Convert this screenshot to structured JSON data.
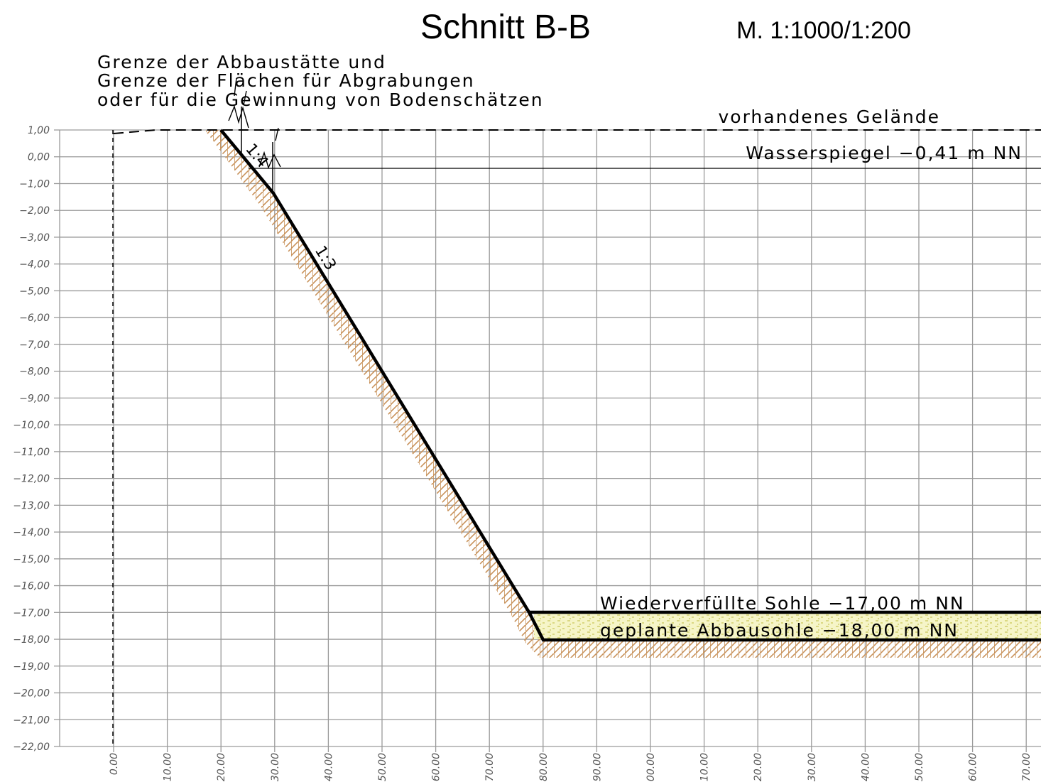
{
  "header": {
    "title": "Schnitt B-B",
    "scale": "M. 1:1000/1:200"
  },
  "annotations": {
    "boundary": [
      "Grenze der Abbaustätte und",
      "Grenze der Flächen für Abgrabungen",
      "oder für die Gewinnung von Bodenschätzen"
    ],
    "terrain": "vorhandenes Gelände",
    "water": "Wasserspiegel −0,41 m NN",
    "refilled": "Wiederverfüllte Sohle −17,00 m NN",
    "planned": "geplante Abbausohle −18,00 m NN",
    "slope_upper": "1:4",
    "slope_lower": "1:3"
  },
  "y_axis": [
    "1,00",
    "0,00",
    "−1,00",
    "−2,00",
    "−3,00",
    "−4,00",
    "−5,00",
    "−6,00",
    "−7,00",
    "−8,00",
    "−9,00",
    "−10,00",
    "−11,00",
    "−12,00",
    "−13,00",
    "−14,00",
    "−15,00",
    "−16,00",
    "−17,00",
    "−18,00",
    "−19,00",
    "−20,00",
    "−21,00",
    "−22,00"
  ],
  "x_axis": [
    "0.00",
    "10.00",
    "20.00",
    "30.00",
    "40.00",
    "50.00",
    "60.00",
    "70.00",
    "80.00",
    "90.00",
    "00.00",
    "10.00",
    "20.00",
    "30.00",
    "40.00",
    "50.00",
    "60.00",
    "70.00"
  ]
}
